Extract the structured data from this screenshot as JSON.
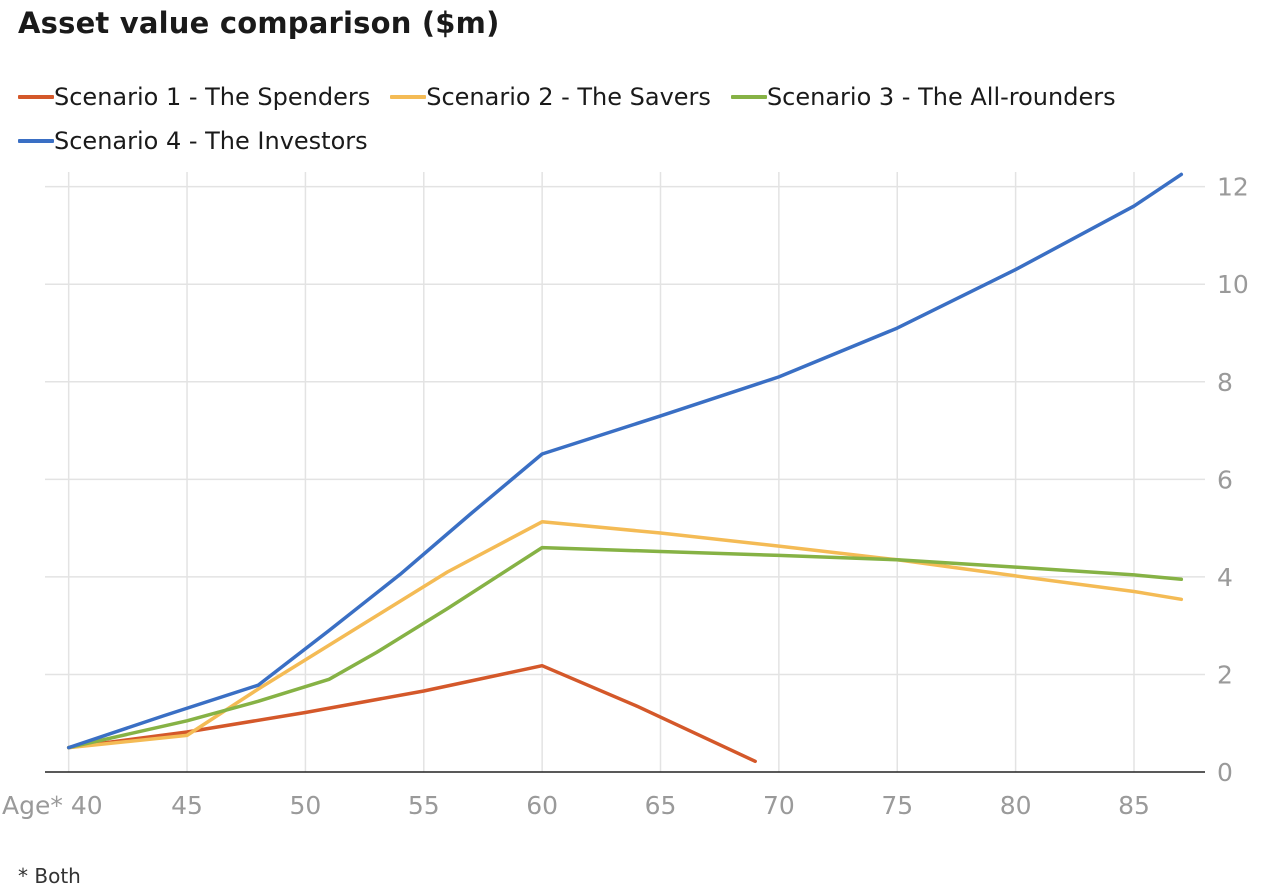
{
  "title": "Asset value comparison ($m)",
  "footnote": "* Both",
  "colors": {
    "grid": "#e3e3e3",
    "axis": "#222222",
    "tick": "#9a9a9a"
  },
  "chart_data": {
    "type": "line",
    "title": "Asset value comparison ($m)",
    "xlabel": "",
    "ylabel": "",
    "xlim": [
      39,
      88
    ],
    "ylim": [
      0,
      12.3
    ],
    "x_ticks": [
      40,
      45,
      50,
      55,
      60,
      65,
      70,
      75,
      80,
      85
    ],
    "x_tick_labels": [
      "Age* 40",
      "45",
      "50",
      "55",
      "60",
      "65",
      "70",
      "75",
      "80",
      "85"
    ],
    "y_ticks": [
      0,
      2,
      4,
      6,
      8,
      10,
      12
    ],
    "y_tick_labels": [
      "0",
      "2",
      "4",
      "6",
      "8",
      "10",
      "12"
    ],
    "y_axis_position": "right",
    "grid": true,
    "legend_position": "top",
    "series": [
      {
        "name": "Scenario 1 - The Spenders",
        "color": "#d4582a",
        "points": [
          [
            40,
            0.5
          ],
          [
            45,
            0.82
          ],
          [
            50,
            1.22
          ],
          [
            55,
            1.66
          ],
          [
            60,
            2.18
          ],
          [
            64,
            1.35
          ],
          [
            69,
            0.22
          ]
        ]
      },
      {
        "name": "Scenario 2 - The Savers",
        "color": "#f4bb55",
        "points": [
          [
            40,
            0.5
          ],
          [
            45,
            0.75
          ],
          [
            48,
            1.7
          ],
          [
            52,
            2.9
          ],
          [
            56,
            4.1
          ],
          [
            60,
            5.13
          ],
          [
            65,
            4.9
          ],
          [
            70,
            4.63
          ],
          [
            75,
            4.35
          ],
          [
            80,
            4.02
          ],
          [
            85,
            3.7
          ],
          [
            87,
            3.54
          ]
        ]
      },
      {
        "name": "Scenario 3 - The All-rounders",
        "color": "#86b245",
        "points": [
          [
            40,
            0.5
          ],
          [
            45,
            1.05
          ],
          [
            48,
            1.45
          ],
          [
            51,
            1.9
          ],
          [
            53,
            2.45
          ],
          [
            56,
            3.35
          ],
          [
            60,
            4.6
          ],
          [
            65,
            4.52
          ],
          [
            70,
            4.44
          ],
          [
            75,
            4.35
          ],
          [
            80,
            4.2
          ],
          [
            85,
            4.04
          ],
          [
            87,
            3.95
          ]
        ]
      },
      {
        "name": "Scenario 4 - The Investors",
        "color": "#3a6fc4",
        "points": [
          [
            40,
            0.5
          ],
          [
            44,
            1.15
          ],
          [
            48,
            1.78
          ],
          [
            51,
            2.9
          ],
          [
            54,
            4.05
          ],
          [
            57,
            5.3
          ],
          [
            60,
            6.52
          ],
          [
            65,
            7.3
          ],
          [
            70,
            8.1
          ],
          [
            75,
            9.1
          ],
          [
            80,
            10.3
          ],
          [
            85,
            11.6
          ],
          [
            87,
            12.25
          ]
        ]
      }
    ]
  }
}
